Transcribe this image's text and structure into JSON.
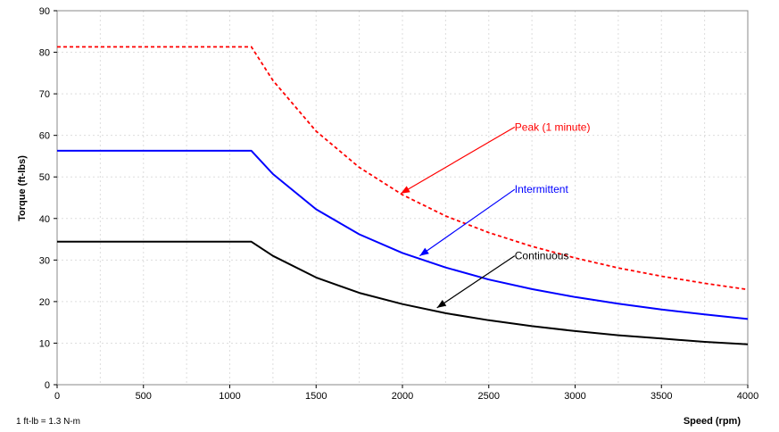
{
  "chart_data": {
    "type": "line",
    "xlabel": "Speed (rpm)",
    "ylabel": "Torque (ft-lbs)",
    "xlim": [
      0,
      4000
    ],
    "ylim": [
      0,
      90
    ],
    "x_ticks": [
      0,
      500,
      1000,
      1500,
      2000,
      2500,
      3000,
      3500,
      4000
    ],
    "y_ticks": [
      0,
      10,
      20,
      30,
      40,
      50,
      60,
      70,
      80,
      90
    ],
    "x_tick_labels": [
      "0",
      "500",
      "1000",
      "1500",
      "2000",
      "2500",
      "3000",
      "3500",
      "4000"
    ],
    "y_tick_labels": [
      "0",
      "10",
      "20",
      "30",
      "40",
      "50",
      "60",
      "70",
      "80",
      "90"
    ],
    "grid": true,
    "note": "1 ft-lb = 1.3 N-m",
    "series": [
      {
        "name": "Peak (1 minute)",
        "color": "#ff0000",
        "style": "dashed",
        "x": [
          0,
          500,
          1000,
          1125,
          1250,
          1500,
          1750,
          2000,
          2250,
          2500,
          2750,
          3000,
          3250,
          3500,
          3750,
          4000
        ],
        "y": [
          81.3,
          81.3,
          81.3,
          81.3,
          73.2,
          61.0,
          52.3,
          45.7,
          40.6,
          36.6,
          33.3,
          30.5,
          28.1,
          26.1,
          24.4,
          22.9
        ]
      },
      {
        "name": "Intermittent",
        "color": "#0000ff",
        "style": "solid",
        "x": [
          0,
          500,
          1000,
          1125,
          1250,
          1500,
          1750,
          2000,
          2250,
          2500,
          2750,
          3000,
          3250,
          3500,
          3750,
          4000
        ],
        "y": [
          56.3,
          56.3,
          56.3,
          56.3,
          50.7,
          42.2,
          36.2,
          31.7,
          28.2,
          25.3,
          23.0,
          21.1,
          19.5,
          18.1,
          16.9,
          15.8
        ]
      },
      {
        "name": "Continuous",
        "color": "#000000",
        "style": "solid",
        "x": [
          0,
          500,
          1000,
          1125,
          1250,
          1500,
          1750,
          2000,
          2250,
          2500,
          2750,
          3000,
          3250,
          3500,
          3750,
          4000
        ],
        "y": [
          34.4,
          34.4,
          34.4,
          34.4,
          31.0,
          25.8,
          22.1,
          19.4,
          17.2,
          15.5,
          14.1,
          12.9,
          11.9,
          11.1,
          10.3,
          9.7
        ]
      }
    ],
    "annotations": [
      {
        "text": "Peak (1 minute)",
        "color": "#ff0000",
        "label_at": [
          2650,
          62
        ],
        "arrow_to": [
          1990,
          46
        ]
      },
      {
        "text": "Intermittent",
        "color": "#0000ff",
        "label_at": [
          2650,
          47
        ],
        "arrow_to": [
          2100,
          31
        ]
      },
      {
        "text": "Continuous",
        "color": "#000000",
        "label_at": [
          2650,
          31
        ],
        "arrow_to": [
          2200,
          18.5
        ]
      }
    ]
  }
}
